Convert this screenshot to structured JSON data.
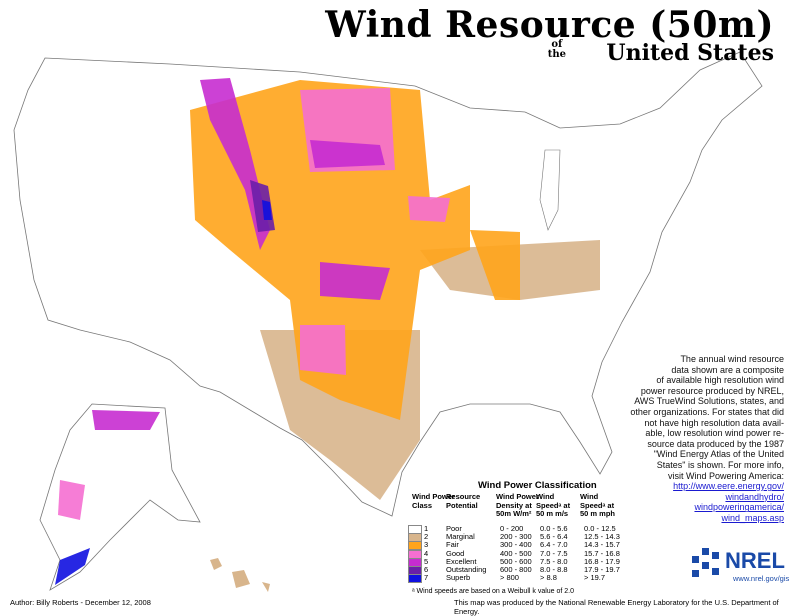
{
  "header": {
    "title": "Wind Resource (50m)",
    "of": "of",
    "the": "the",
    "subtitle": "United States"
  },
  "description": [
    "The annual wind resource",
    "data shown are a composite",
    "of available high resolution wind",
    "power resource produced by NREL,",
    "AWS TrueWind Solutions, states, and",
    "other organizations. For states that did",
    "not  have high resolution data avail-",
    "able, low resolution wind power re-",
    "source data produced by the 1987",
    "\"Wind Energy Atlas of the United",
    "States\" is shown.  For more info,",
    "visit Wind Powering America:"
  ],
  "links": [
    "http://www.eere.energy.gov/",
    "windandhydro/",
    "windpoweringamerica/",
    "wind_maps.asp"
  ],
  "legend": {
    "title": "Wind Power Classification",
    "headers": [
      "Wind Power Class",
      "Resource Potential",
      "Wind Power Density at 50m W/m²",
      "Wind Speedᵃ at 50 m m/s",
      "Wind Speedᵃ at 50 m mph"
    ],
    "rows": [
      {
        "class": 1,
        "potential": "Poor",
        "density": "0 - 200",
        "ms": "0.0 - 5.6",
        "mph": "0.0 - 12.5",
        "color": "#ffffff"
      },
      {
        "class": 2,
        "potential": "Marginal",
        "density": "200 - 300",
        "ms": "5.6 - 6.4",
        "mph": "12.5 - 14.3",
        "color": "#d8b58c"
      },
      {
        "class": 3,
        "potential": "Fair",
        "density": "300 - 400",
        "ms": "6.4 - 7.0",
        "mph": "14.3 - 15.7",
        "color": "#ffa41b"
      },
      {
        "class": 4,
        "potential": "Good",
        "density": "400 - 500",
        "ms": "7.0 - 7.5",
        "mph": "15.7 - 16.8",
        "color": "#f56fd2"
      },
      {
        "class": 5,
        "potential": "Excellent",
        "density": "500 - 600",
        "ms": "7.5 - 8.0",
        "mph": "16.8 - 17.9",
        "color": "#c62cd0"
      },
      {
        "class": 6,
        "potential": "Outstanding",
        "density": "600 - 800",
        "ms": "8.0 - 8.8",
        "mph": "17.9 - 19.7",
        "color": "#6a1fa8"
      },
      {
        "class": 7,
        "potential": "Superb",
        "density": "> 800",
        "ms": "> 8.8",
        "mph": "> 19.7",
        "color": "#1010e0"
      }
    ],
    "footnote": "ᵃ Wind speeds are based on a Weibull k value of 2.0"
  },
  "logo": {
    "name": "NREL",
    "url": "www.nrel.gov/gis"
  },
  "footer": {
    "author": "Author: Billy Roberts - December 12, 2008",
    "credit": "This map was produced by the National Renewable Energy Laboratory for the U.S. Department of Energy."
  }
}
